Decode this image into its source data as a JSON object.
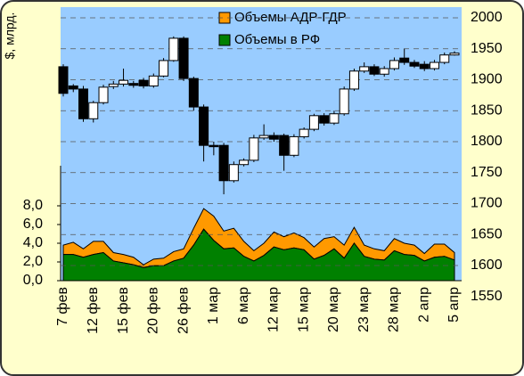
{
  "chart_data": [
    {
      "type": "candlestick",
      "open": [
        1921,
        1890,
        1885,
        1837,
        1863,
        1889,
        1893,
        1894,
        1899,
        1890,
        1906,
        1931,
        1967,
        1902,
        1856,
        1794,
        1794,
        1737,
        1763,
        1770,
        1806,
        1810,
        1810,
        1778,
        1808,
        1820,
        1842,
        1830,
        1845,
        1885,
        1914,
        1921,
        1909,
        1918,
        1935,
        1928,
        1925,
        1918,
        1928,
        1940
      ],
      "close": [
        1878,
        1885,
        1837,
        1863,
        1888,
        1893,
        1899,
        1891,
        1890,
        1906,
        1931,
        1967,
        1902,
        1856,
        1794,
        1793,
        1737,
        1763,
        1770,
        1806,
        1810,
        1804,
        1778,
        1808,
        1820,
        1842,
        1830,
        1845,
        1885,
        1914,
        1921,
        1909,
        1918,
        1931,
        1928,
        1922,
        1918,
        1928,
        1940,
        1943
      ],
      "high": [
        1925,
        1893,
        1890,
        1866,
        1892,
        1898,
        1918,
        1898,
        1903,
        1910,
        1935,
        1970,
        1970,
        1905,
        1860,
        1800,
        1798,
        1768,
        1773,
        1811,
        1828,
        1815,
        1813,
        1812,
        1823,
        1845,
        1846,
        1850,
        1889,
        1918,
        1928,
        1925,
        1922,
        1936,
        1950,
        1932,
        1930,
        1932,
        1944,
        1946
      ],
      "low": [
        1873,
        1880,
        1832,
        1831,
        1860,
        1885,
        1889,
        1887,
        1886,
        1887,
        1904,
        1929,
        1898,
        1850,
        1768,
        1778,
        1715,
        1734,
        1760,
        1767,
        1803,
        1800,
        1753,
        1775,
        1805,
        1817,
        1826,
        1827,
        1842,
        1882,
        1911,
        1906,
        1905,
        1915,
        1924,
        1919,
        1914,
        1915,
        1925,
        1939
      ],
      "up_color": "#ffffff",
      "down_color": "#000000",
      "y2lim": [
        1550,
        2000
      ],
      "y2ticks": [
        1550,
        1600,
        1650,
        1700,
        1750,
        1800,
        1850,
        1900,
        1950,
        2000
      ],
      "grid": true
    },
    {
      "type": "stacked_area",
      "ylabel": "$, млрд.",
      "categories": [
        "7 фев",
        null,
        null,
        "12 фев",
        null,
        null,
        "15 фев",
        null,
        null,
        "20 фев",
        null,
        null,
        "26 фев",
        null,
        null,
        "1 мар",
        null,
        null,
        "6 мар",
        null,
        null,
        "12 мар",
        null,
        null,
        "15 мар",
        null,
        null,
        "20 мар",
        null,
        null,
        "23 мар",
        null,
        null,
        "28 мар",
        null,
        null,
        "2 апр",
        null,
        null,
        "5 апр"
      ],
      "series": [
        {
          "name": "Объемы в РФ",
          "color": "#008000",
          "values": [
            2.8,
            2.8,
            2.5,
            2.8,
            3.0,
            2.1,
            1.9,
            1.7,
            1.4,
            1.6,
            1.6,
            2.1,
            2.4,
            3.8,
            5.5,
            4.3,
            3.4,
            3.5,
            2.6,
            2.1,
            2.7,
            3.6,
            3.3,
            3.5,
            3.3,
            2.3,
            2.7,
            3.4,
            2.4,
            4.0,
            2.6,
            2.3,
            2.2,
            3.2,
            2.8,
            2.7,
            2.1,
            2.5,
            2.6,
            2.2
          ]
        },
        {
          "name": "Объемы АДР-ГДР",
          "color": "#ff9900",
          "values": [
            1.0,
            1.3,
            0.9,
            1.4,
            1.2,
            0.9,
            0.9,
            0.8,
            0.3,
            0.7,
            0.8,
            1.0,
            1.0,
            1.8,
            2.2,
            2.6,
            1.9,
            2.1,
            1.6,
            1.1,
            1.3,
            1.6,
            1.4,
            1.6,
            1.3,
            1.3,
            1.8,
            1.3,
            1.4,
            1.7,
            1.2,
            1.1,
            1.0,
            1.3,
            1.2,
            1.1,
            0.8,
            1.4,
            1.3,
            0.8
          ]
        }
      ],
      "ylim": [
        0,
        8
      ],
      "yticks": [
        {
          "value": 0,
          "label": "0,0"
        },
        {
          "value": 2,
          "label": "2,0"
        },
        {
          "value": 4,
          "label": "4,0"
        },
        {
          "value": 6,
          "label": "6,0"
        },
        {
          "value": 8,
          "label": "8,0"
        }
      ]
    }
  ]
}
